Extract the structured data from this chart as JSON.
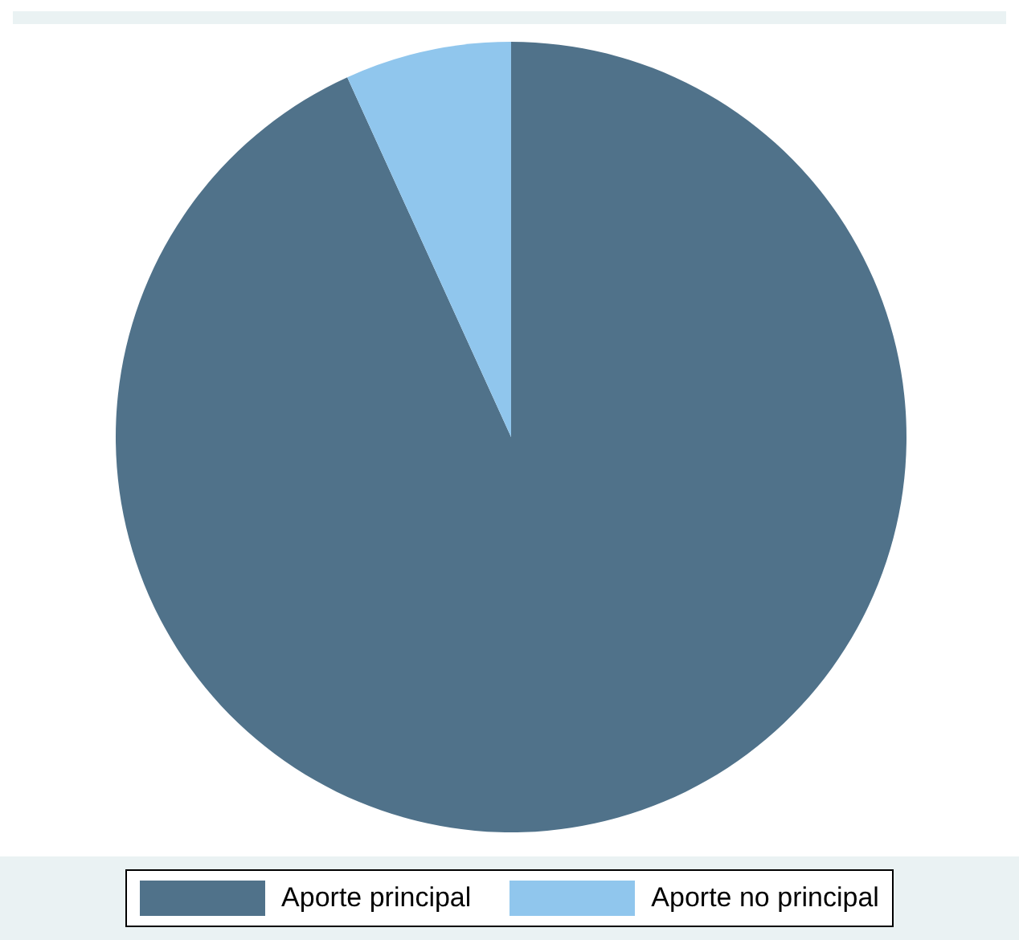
{
  "chart_data": {
    "type": "pie",
    "categories": [
      "Aporte principal",
      "Aporte no principal"
    ],
    "values": [
      93.2,
      6.8
    ],
    "colors": [
      "#50728a",
      "#90c6ed"
    ],
    "legend": "bottom"
  }
}
